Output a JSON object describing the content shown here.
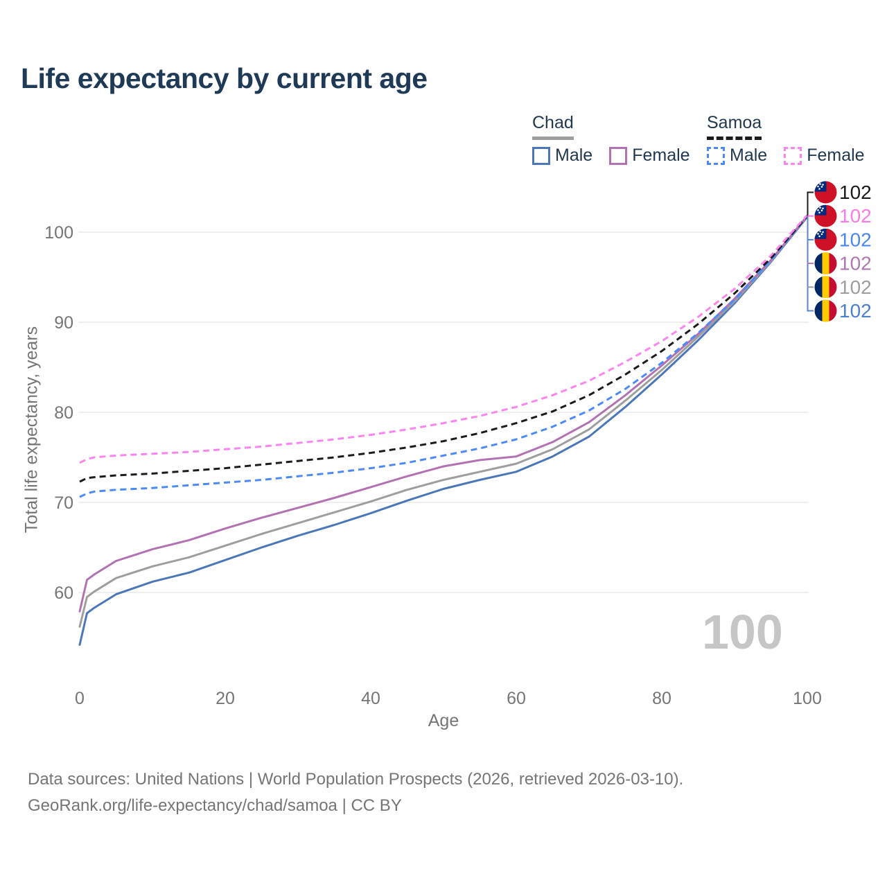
{
  "title": "Life expectancy by current age",
  "legend": {
    "groups": [
      {
        "name": "Chad",
        "line_style": "solid",
        "line_color": "#9e9e9e",
        "items": [
          {
            "label": "Male",
            "color": "#4b76b8",
            "dashed": false
          },
          {
            "label": "Female",
            "color": "#b272b1",
            "dashed": false
          }
        ]
      },
      {
        "name": "Samoa",
        "line_style": "dashed",
        "line_color": "#1b1b1b",
        "items": [
          {
            "label": "Male",
            "color": "#4d8af8",
            "dashed": true
          },
          {
            "label": "Female",
            "color": "#fb85ee",
            "dashed": true
          }
        ]
      }
    ]
  },
  "chart_data": {
    "type": "line",
    "title": "Life expectancy by current age",
    "xlabel": "Age",
    "ylabel": "Total life expectancy, years",
    "xlim": [
      0,
      100
    ],
    "ylim": [
      53,
      103
    ],
    "x_ticks": [
      0,
      20,
      40,
      60,
      80,
      100
    ],
    "y_ticks": [
      60,
      70,
      80,
      90,
      100
    ],
    "grid": "horizontal-only",
    "legend_position": "top-right",
    "x": [
      0,
      1,
      2,
      5,
      10,
      15,
      20,
      25,
      30,
      35,
      40,
      45,
      50,
      55,
      60,
      65,
      70,
      75,
      80,
      85,
      90,
      95,
      100
    ],
    "series": [
      {
        "name": "Chad Male",
        "country": "Chad",
        "sex": "Male",
        "color": "#4b76b8",
        "dashed": false,
        "flag": "chad",
        "end_value_label": "102",
        "label_color": "#4d7fd0",
        "values": [
          54.2,
          57.7,
          58.3,
          59.8,
          61.2,
          62.2,
          63.6,
          65.0,
          66.3,
          67.5,
          68.8,
          70.2,
          71.5,
          72.5,
          73.4,
          75.1,
          77.3,
          80.6,
          84.2,
          88.0,
          92.1,
          96.7,
          101.7
        ]
      },
      {
        "name": "Chad All",
        "country": "Chad",
        "sex": "All",
        "color": "#9e9e9e",
        "dashed": false,
        "flag": "chad",
        "end_value_label": "102",
        "label_color": "#9e9e9e",
        "values": [
          56.2,
          59.5,
          60.1,
          61.6,
          62.9,
          63.9,
          65.2,
          66.5,
          67.7,
          68.9,
          70.1,
          71.4,
          72.5,
          73.4,
          74.3,
          75.9,
          78.1,
          81.3,
          84.7,
          88.4,
          92.3,
          96.8,
          101.8
        ]
      },
      {
        "name": "Chad Female",
        "country": "Chad",
        "sex": "Female",
        "color": "#b272b1",
        "dashed": false,
        "flag": "chad",
        "end_value_label": "102",
        "label_color": "#b078b0",
        "values": [
          57.9,
          61.4,
          62.0,
          63.5,
          64.8,
          65.8,
          67.1,
          68.3,
          69.4,
          70.5,
          71.7,
          72.9,
          74.0,
          74.7,
          75.1,
          76.7,
          78.9,
          81.9,
          85.2,
          88.7,
          92.6,
          96.9,
          101.8
        ]
      },
      {
        "name": "Samoa Male",
        "country": "Samoa",
        "sex": "Male",
        "color": "#4d8af8",
        "dashed": true,
        "flag": "samoa",
        "end_value_label": "102",
        "label_color": "#4c87f0",
        "values": [
          70.6,
          71.0,
          71.2,
          71.4,
          71.6,
          71.9,
          72.2,
          72.5,
          72.9,
          73.3,
          73.8,
          74.4,
          75.2,
          76.0,
          77.0,
          78.4,
          80.2,
          82.6,
          85.5,
          88.8,
          92.5,
          96.9,
          101.8
        ]
      },
      {
        "name": "Samoa All",
        "country": "Samoa",
        "sex": "All",
        "color": "#1b1b1b",
        "dashed": true,
        "flag": "samoa",
        "end_value_label": "102",
        "label_color": "#1b1b1b",
        "values": [
          72.3,
          72.7,
          72.8,
          73.0,
          73.2,
          73.5,
          73.8,
          74.2,
          74.6,
          75.0,
          75.5,
          76.1,
          76.8,
          77.7,
          78.8,
          80.1,
          81.9,
          84.2,
          86.8,
          89.8,
          93.2,
          97.1,
          101.8
        ]
      },
      {
        "name": "Samoa Female",
        "country": "Samoa",
        "sex": "Female",
        "color": "#fb85ee",
        "dashed": true,
        "flag": "samoa",
        "end_value_label": "102",
        "label_color": "#f97ce5",
        "values": [
          74.4,
          74.8,
          75.0,
          75.2,
          75.4,
          75.6,
          75.9,
          76.2,
          76.6,
          77.0,
          77.5,
          78.1,
          78.8,
          79.6,
          80.6,
          81.9,
          83.5,
          85.6,
          87.9,
          90.6,
          93.7,
          97.4,
          101.9
        ]
      }
    ],
    "endpoint_rows_top_to_bottom": [
      "Samoa All",
      "Samoa Female",
      "Samoa Male",
      "Chad Female",
      "Chad All",
      "Chad Male"
    ]
  },
  "watermark": "100",
  "footer": {
    "line1": "Data sources: United Nations | World Population Prospects (2026, retrieved 2026-03-10).",
    "line2": "GeoRank.org/life-expectancy/chad/samoa | CC BY"
  },
  "flag_colors": {
    "chad": {
      "blue": "#002664",
      "yellow": "#fecb00",
      "red": "#c60c30"
    },
    "samoa": {
      "red": "#ce1126",
      "blue": "#002b7f",
      "star": "#ffffff"
    }
  }
}
